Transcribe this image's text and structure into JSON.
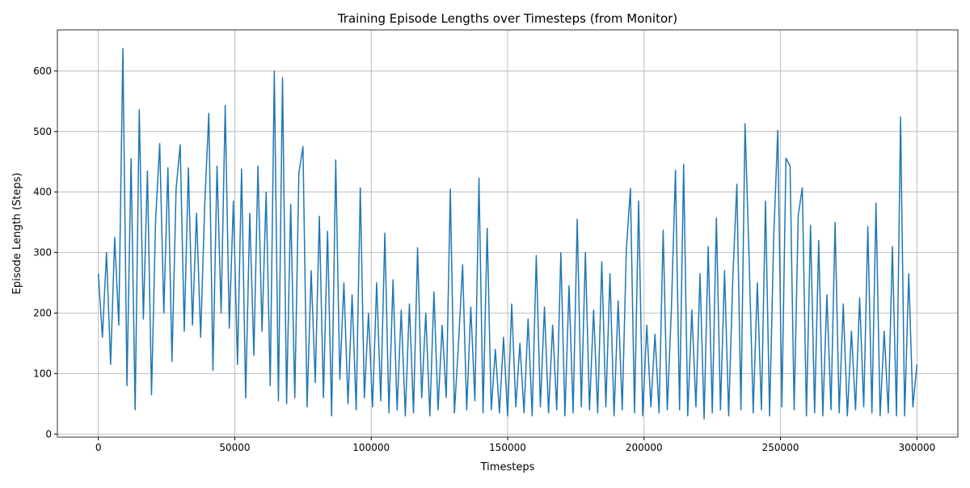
{
  "chart_data": {
    "type": "line",
    "title": "Training Episode Lengths over Timesteps (from Monitor)",
    "x_label": "Timesteps",
    "y_label": "Episode Length (Steps)",
    "xlim": [
      -15000,
      315000
    ],
    "ylim": [
      -5,
      668
    ],
    "xticks": [
      0,
      50000,
      100000,
      150000,
      200000,
      250000,
      300000
    ],
    "yticks": [
      0,
      100,
      200,
      300,
      400,
      500,
      600
    ],
    "grid": true,
    "x": [
      0,
      1500,
      3000,
      4500,
      6000,
      7500,
      9000,
      10500,
      12000,
      13500,
      15000,
      16500,
      18000,
      19500,
      21000,
      22500,
      24000,
      25500,
      27000,
      28500,
      30000,
      31500,
      33000,
      34500,
      36000,
      37500,
      39000,
      40500,
      42000,
      43500,
      45000,
      46500,
      48000,
      49500,
      51000,
      52500,
      54000,
      55500,
      57000,
      58500,
      60000,
      61500,
      63000,
      64500,
      66000,
      67500,
      69000,
      70500,
      72000,
      73500,
      75000,
      76500,
      78000,
      79500,
      81000,
      82500,
      84000,
      85500,
      87000,
      88500,
      90000,
      91500,
      93000,
      94500,
      96000,
      97500,
      99000,
      100500,
      102000,
      103500,
      105000,
      106500,
      108000,
      109500,
      111000,
      112500,
      114000,
      115500,
      117000,
      118500,
      120000,
      121500,
      123000,
      124500,
      126000,
      127500,
      129000,
      130500,
      132000,
      133500,
      135000,
      136500,
      138000,
      139500,
      141000,
      142500,
      144000,
      145500,
      147000,
      148500,
      150000,
      151500,
      153000,
      154500,
      156000,
      157500,
      159000,
      160500,
      162000,
      163500,
      165000,
      166500,
      168000,
      169500,
      171000,
      172500,
      174000,
      175500,
      177000,
      178500,
      180000,
      181500,
      183000,
      184500,
      186000,
      187500,
      189000,
      190500,
      192000,
      193500,
      195000,
      196500,
      198000,
      199500,
      201000,
      202500,
      204000,
      205500,
      207000,
      208500,
      210000,
      211500,
      213000,
      214500,
      216000,
      217500,
      219000,
      220500,
      222000,
      223500,
      225000,
      226500,
      228000,
      229500,
      231000,
      232500,
      234000,
      235500,
      237000,
      238500,
      240000,
      241500,
      243000,
      244500,
      246000,
      247500,
      249000,
      250500,
      252000,
      253500,
      255000,
      256500,
      258000,
      259500,
      261000,
      262500,
      264000,
      265500,
      267000,
      268500,
      270000,
      271500,
      273000,
      274500,
      276000,
      277500,
      279000,
      280500,
      282000,
      283500,
      285000,
      286500,
      288000,
      289500,
      291000,
      292500,
      294000,
      295500,
      297000,
      298500,
      300000
    ],
    "series": [
      {
        "color": "#1f77b4",
        "values": [
          265,
          160,
          300,
          115,
          325,
          180,
          637,
          80,
          455,
          40,
          536,
          190,
          435,
          65,
          355,
          480,
          200,
          440,
          120,
          405,
          478,
          170,
          440,
          180,
          365,
          160,
          380,
          530,
          105,
          443,
          200,
          543,
          175,
          385,
          115,
          438,
          60,
          365,
          130,
          443,
          170,
          400,
          80,
          600,
          55,
          589,
          50,
          380,
          60,
          432,
          475,
          45,
          270,
          85,
          360,
          60,
          335,
          30,
          453,
          90,
          250,
          50,
          230,
          40,
          407,
          60,
          200,
          45,
          250,
          55,
          332,
          35,
          255,
          40,
          205,
          30,
          215,
          35,
          308,
          60,
          200,
          30,
          235,
          40,
          180,
          60,
          405,
          35,
          150,
          280,
          40,
          210,
          55,
          423,
          35,
          340,
          40,
          140,
          35,
          160,
          30,
          215,
          45,
          150,
          35,
          190,
          30,
          295,
          45,
          210,
          35,
          180,
          40,
          300,
          30,
          245,
          35,
          355,
          45,
          300,
          40,
          205,
          35,
          285,
          45,
          265,
          30,
          220,
          40,
          305,
          406,
          35,
          385,
          30,
          180,
          45,
          165,
          35,
          337,
          40,
          205,
          436,
          40,
          446,
          30,
          205,
          45,
          265,
          25,
          310,
          35,
          357,
          40,
          270,
          30,
          255,
          413,
          40,
          513,
          290,
          35,
          250,
          40,
          385,
          30,
          325,
          502,
          45,
          456,
          443,
          40,
          362,
          407,
          30,
          345,
          35,
          320,
          30,
          230,
          40,
          350,
          35,
          215,
          30,
          170,
          40,
          225,
          45,
          343,
          35,
          382,
          30,
          170,
          35,
          310,
          30,
          524,
          30,
          265,
          45,
          115
        ]
      }
    ]
  }
}
